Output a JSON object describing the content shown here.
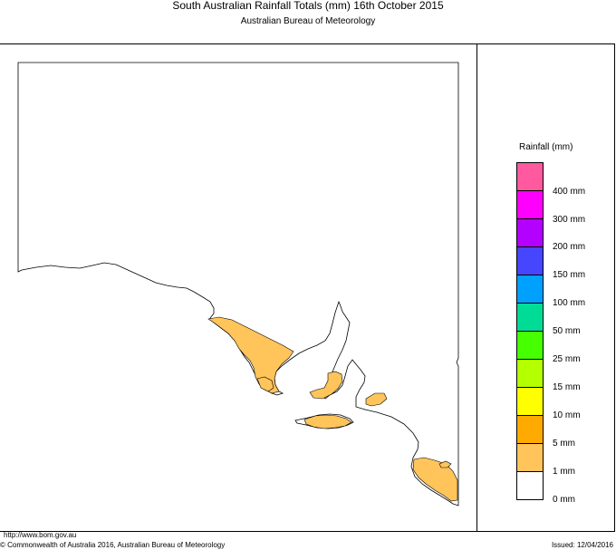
{
  "header": {
    "title": "South Australian Rainfall Totals (mm)   16th October 2015",
    "subtitle": "Australian Bureau of Meteorology"
  },
  "legend": {
    "title": "Rainfall (mm)",
    "bins": [
      {
        "color": "#ff5aa0"
      },
      {
        "color": "#ff00ff",
        "label": "400 mm"
      },
      {
        "color": "#b400ff",
        "label": "300 mm"
      },
      {
        "color": "#4646ff",
        "label": "200 mm"
      },
      {
        "color": "#00a0ff",
        "label": "150 mm"
      },
      {
        "color": "#00dc96",
        "label": "100 mm"
      },
      {
        "color": "#46ff00",
        "label": "50 mm"
      },
      {
        "color": "#b4ff00",
        "label": "25 mm"
      },
      {
        "color": "#ffff00",
        "label": "15 mm"
      },
      {
        "color": "#ffaa00",
        "label": "10 mm"
      },
      {
        "color": "#ffc45a",
        "label": "5 mm"
      },
      {
        "color": "#ffffff",
        "label": "1 mm"
      },
      {
        "label": "0 mm"
      }
    ]
  },
  "map": {
    "rain_fill_color": "#ffc45a",
    "rain_level": "1 mm"
  },
  "footer": {
    "url": "http://www.bom.gov.au",
    "copyright": "© Commonwealth of Australia 2016, Australian Bureau of Meteorology",
    "issued": "Issued: 12/04/2016"
  }
}
